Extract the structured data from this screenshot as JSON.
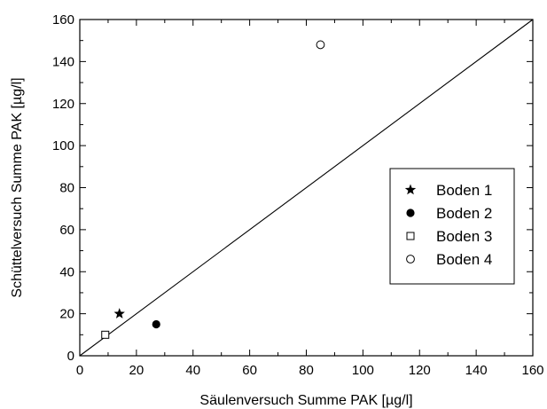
{
  "chart_data": {
    "type": "scatter",
    "xlabel": "Säulenversuch Summe PAK [µg/l]",
    "ylabel": "Schüttelversuch Summe PAK [µg/l]",
    "xlim": [
      0,
      160
    ],
    "ylim": [
      0,
      160
    ],
    "xticks": [
      0,
      20,
      40,
      60,
      80,
      100,
      120,
      140,
      160
    ],
    "yticks": [
      0,
      20,
      40,
      60,
      80,
      100,
      120,
      140,
      160
    ],
    "x_tick_labels": [
      "0",
      "20",
      "40",
      "60",
      "80",
      "100",
      "120",
      "140",
      "160"
    ],
    "y_tick_labels": [
      "0",
      "20",
      "40",
      "60",
      "80",
      "100",
      "120",
      "140",
      "160"
    ],
    "grid": false,
    "legend_position": "right",
    "reference_line": {
      "from": [
        0,
        0
      ],
      "to": [
        160,
        160
      ]
    },
    "series": [
      {
        "name": "Boden 1",
        "marker": "star",
        "points": [
          {
            "x": 14,
            "y": 20
          }
        ]
      },
      {
        "name": "Boden 2",
        "marker": "filled-circle",
        "points": [
          {
            "x": 27,
            "y": 15
          }
        ]
      },
      {
        "name": "Boden 3",
        "marker": "open-square",
        "points": [
          {
            "x": 9,
            "y": 10
          }
        ]
      },
      {
        "name": "Boden 4",
        "marker": "open-circle",
        "points": [
          {
            "x": 85,
            "y": 148
          }
        ]
      }
    ]
  }
}
